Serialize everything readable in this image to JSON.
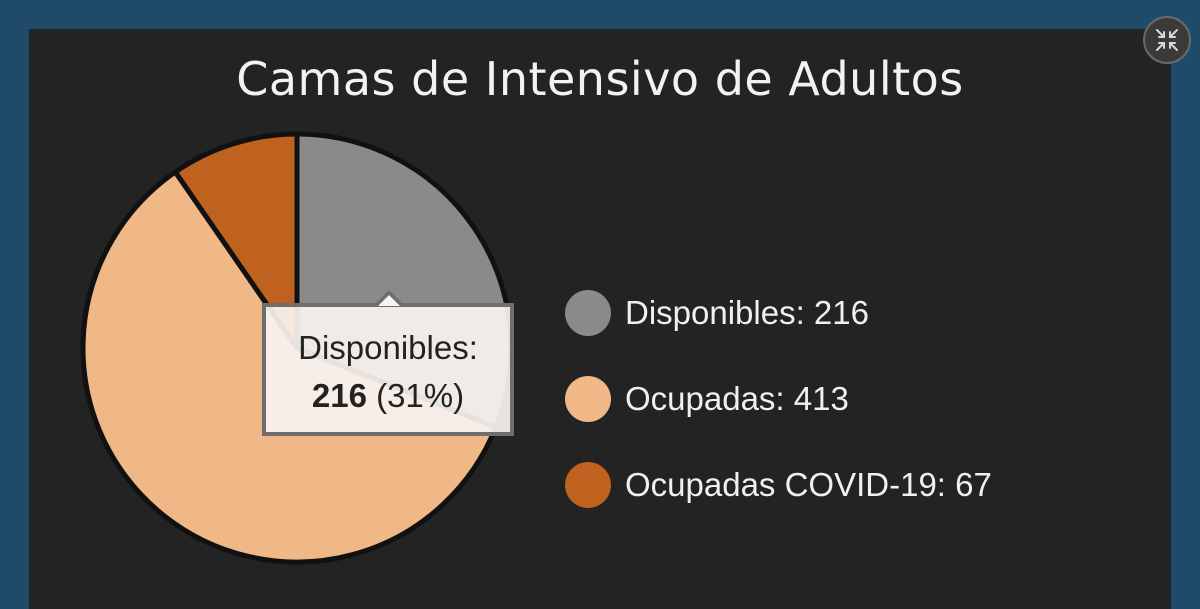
{
  "title": "Camas de Intensivo de Adultos",
  "chart_data": {
    "type": "pie",
    "title": "Camas de Intensivo de Adultos",
    "categories": [
      "Disponibles",
      "Ocupadas",
      "Ocupadas COVID-19"
    ],
    "values": [
      216,
      413,
      67
    ],
    "colors": [
      "#8a8a8a",
      "#f0b887",
      "#c0621f"
    ],
    "legend": "right",
    "legend_labels": [
      "Disponibles:  216",
      "Ocupadas:  413",
      "Ocupadas COVID-19:  67"
    ],
    "tooltip": {
      "label": "Disponibles:",
      "value": "216",
      "percent": "(31%)"
    }
  },
  "controls": {
    "collapse_icon": "collapse-arrows-icon"
  }
}
